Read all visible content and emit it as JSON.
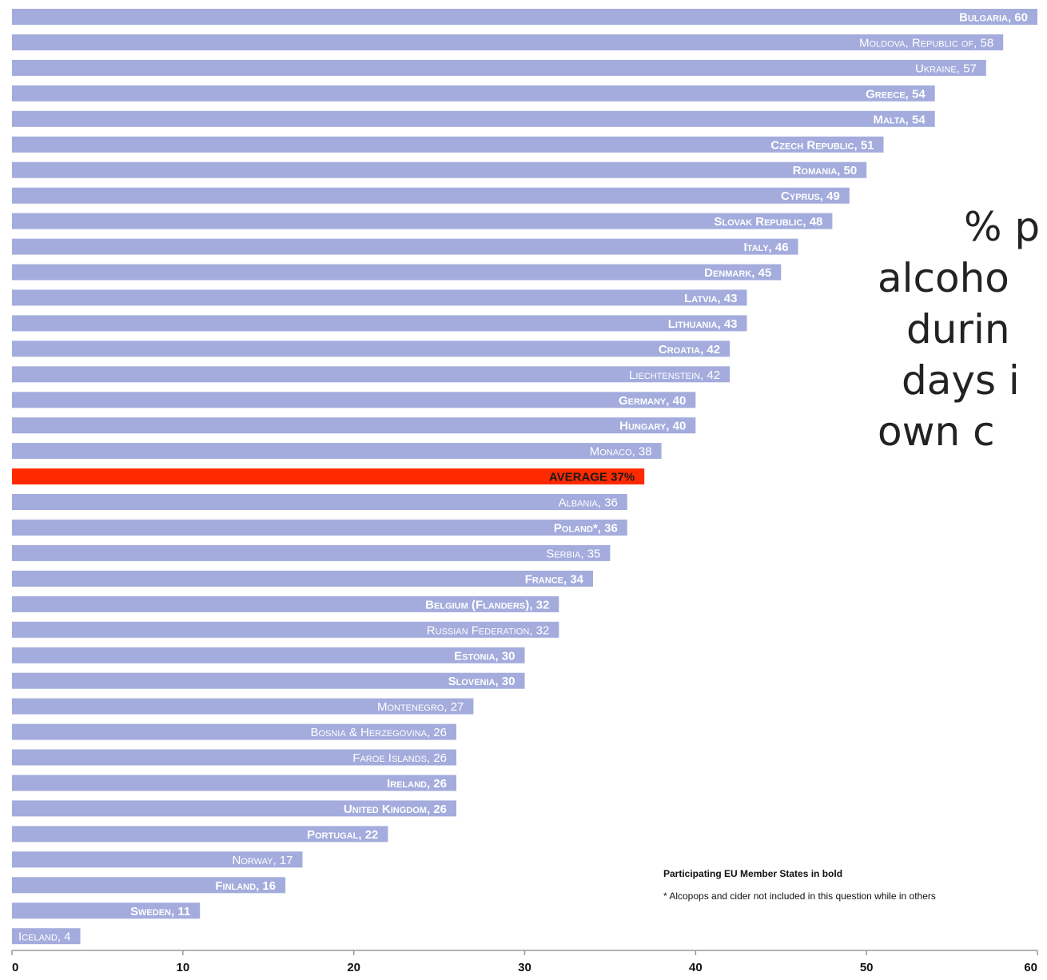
{
  "chart_data": {
    "type": "bar",
    "orientation": "horizontal",
    "xlim": [
      0,
      60
    ],
    "xticks": [
      0,
      10,
      20,
      30,
      40,
      50,
      60
    ],
    "grid": false,
    "bars": [
      {
        "label": "Bulgaria, 60",
        "value": 60,
        "bold": true
      },
      {
        "label": "Moldova, Republic of, 58",
        "value": 58,
        "bold": false
      },
      {
        "label": "Ukraine, 57",
        "value": 57,
        "bold": false
      },
      {
        "label": "Greece, 54",
        "value": 54,
        "bold": true
      },
      {
        "label": "Malta, 54",
        "value": 54,
        "bold": true
      },
      {
        "label": "Czech Republic, 51",
        "value": 51,
        "bold": true
      },
      {
        "label": "Romania, 50",
        "value": 50,
        "bold": true
      },
      {
        "label": "Cyprus, 49",
        "value": 49,
        "bold": true
      },
      {
        "label": "Slovak Republic, 48",
        "value": 48,
        "bold": true
      },
      {
        "label": "Italy, 46",
        "value": 46,
        "bold": true
      },
      {
        "label": "Denmark, 45",
        "value": 45,
        "bold": true
      },
      {
        "label": "Latvia, 43",
        "value": 43,
        "bold": true
      },
      {
        "label": "Lithuania, 43",
        "value": 43,
        "bold": true
      },
      {
        "label": "Croatia, 42",
        "value": 42,
        "bold": true
      },
      {
        "label": "Liechtenstein, 42",
        "value": 42,
        "bold": false
      },
      {
        "label": "Germany, 40",
        "value": 40,
        "bold": true
      },
      {
        "label": "Hungary, 40",
        "value": 40,
        "bold": true
      },
      {
        "label": "Monaco, 38",
        "value": 38,
        "bold": false
      },
      {
        "label": "AVERAGE 37%",
        "value": 37,
        "bold": true,
        "average": true
      },
      {
        "label": "Albania, 36",
        "value": 36,
        "bold": false
      },
      {
        "label": "Poland*, 36",
        "value": 36,
        "bold": true
      },
      {
        "label": "Serbia, 35",
        "value": 35,
        "bold": false
      },
      {
        "label": "France, 34",
        "value": 34,
        "bold": true
      },
      {
        "label": "Belgium (Flanders), 32",
        "value": 32,
        "bold": true
      },
      {
        "label": "Russian Federation, 32",
        "value": 32,
        "bold": false
      },
      {
        "label": "Estonia, 30",
        "value": 30,
        "bold": true
      },
      {
        "label": "Slovenia, 30",
        "value": 30,
        "bold": true
      },
      {
        "label": "Montenegro, 27",
        "value": 27,
        "bold": false
      },
      {
        "label": "Bosnia & Herzegovina, 26",
        "value": 26,
        "bold": false
      },
      {
        "label": "Faroe Islands, 26",
        "value": 26,
        "bold": false
      },
      {
        "label": "Ireland, 26",
        "value": 26,
        "bold": true
      },
      {
        "label": "United Kingdom, 26",
        "value": 26,
        "bold": true
      },
      {
        "label": "Portugal, 22",
        "value": 22,
        "bold": true
      },
      {
        "label": "Norway, 17",
        "value": 17,
        "bold": false
      },
      {
        "label": "Finland, 16",
        "value": 16,
        "bold": true
      },
      {
        "label": "Sweden, 11",
        "value": 11,
        "bold": true
      },
      {
        "label": "Iceland, 4",
        "value": 4,
        "bold": false
      }
    ],
    "colors": {
      "bar": "#a3acdc",
      "average": "#ff2a00",
      "axis": "#999999"
    }
  },
  "side_title_lines": [
    "% p",
    "alcoho",
    "durin",
    "days i",
    "own c"
  ],
  "notes": {
    "bold_note": "Participating EU Member States in bold",
    "footnote": "* Alcopops and cider not included in this question while in others"
  }
}
